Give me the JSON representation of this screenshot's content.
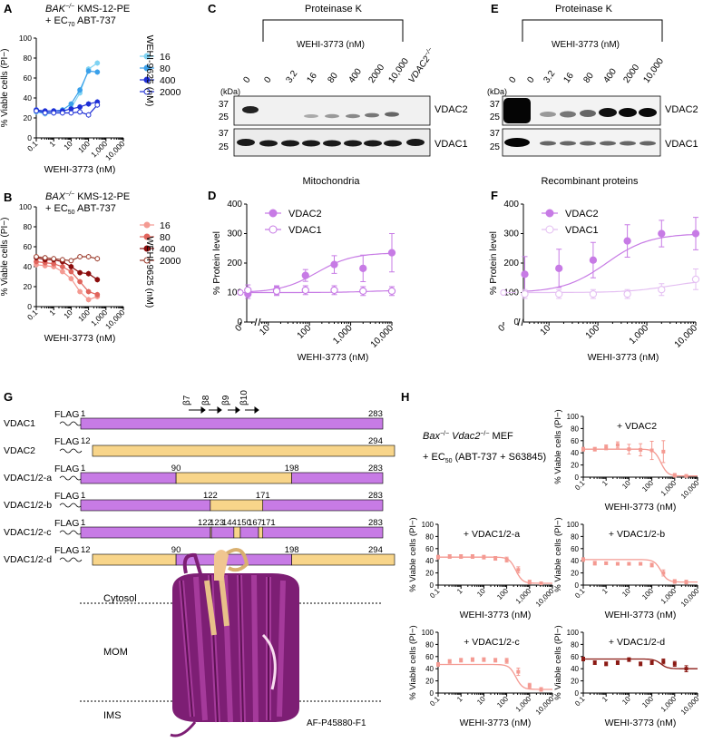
{
  "panels": {
    "A": {
      "letter": "A",
      "title_line1_gene": "BAK",
      "title_line1_sup": "−/−",
      "title_line1_rest": " KMS-12-PE",
      "title_line2": "+ EC",
      "title_line2_sub": "70",
      "title_line2_rest": " ABT-737",
      "ylabel": "% Viable cells (PI",
      "ylabel_sup": "−",
      "ylabel_close": ")",
      "xlabel": "WEHI-3773 (nM)",
      "legend_title": "WEHI-9625 (nM)"
    },
    "B": {
      "letter": "B",
      "title_line1_gene": "BAX",
      "title_line1_sup": "−/−",
      "title_line1_rest": " KMS-12-PE",
      "title_line2": "+ EC",
      "title_line2_sub": "50",
      "title_line2_rest": " ABT-737",
      "ylabel": "% Viable cells (PI",
      "ylabel_sup": "−",
      "ylabel_close": ")",
      "xlabel": "WEHI-3773 (nM)",
      "legend_title": "WEHI-9625 (nM)"
    },
    "C": {
      "letter": "C",
      "header": "Proteinase K",
      "treatment": "WEHI-3773 (nM)",
      "lanes": [
        "0",
        "0",
        "3.2",
        "16",
        "80",
        "400",
        "2000",
        "10,000"
      ],
      "ko_lane_gene": "VDAC2",
      "ko_lane_sup": "−/−",
      "kda": "(kDa)",
      "markers": [
        "37",
        "25",
        "37",
        "25"
      ],
      "bands": [
        "VDAC2",
        "VDAC1"
      ]
    },
    "E": {
      "letter": "E",
      "header": "Proteinase K",
      "treatment": "WEHI-3773 (nM)",
      "lanes": [
        "0",
        "0",
        "3.2",
        "16",
        "80",
        "400",
        "2000",
        "10,000"
      ],
      "kda": "(kDa)",
      "markers": [
        "37",
        "25",
        "37",
        "25"
      ],
      "bands": [
        "VDAC2",
        "VDAC1"
      ]
    },
    "D": {
      "letter": "D",
      "title": "Mitochondria"
    },
    "F": {
      "letter": "F",
      "title": "Recombinant proteins"
    },
    "G": {
      "letter": "G",
      "tag": "FLAG",
      "strands": [
        "β7",
        "β8",
        "β9",
        "β10"
      ],
      "constructs": [
        {
          "name": "VDAC1",
          "start": "1",
          "end": "283"
        },
        {
          "name": "VDAC2",
          "start": "12",
          "end": "294"
        },
        {
          "name": "VDAC1/2-a",
          "start": "1",
          "end": "283",
          "junctions": [
            "90",
            "198"
          ]
        },
        {
          "name": "VDAC1/2-b",
          "start": "1",
          "end": "283",
          "junctions": [
            "122",
            "171"
          ]
        },
        {
          "name": "VDAC1/2-c",
          "start": "1",
          "end": "283",
          "junctions": [
            "122",
            "123",
            "144",
            "150",
            "167",
            "171"
          ]
        },
        {
          "name": "VDAC1/2-d",
          "start": "12",
          "end": "294",
          "junctions": [
            "90",
            "198"
          ]
        }
      ],
      "compartments": [
        "Cytosol",
        "MOM",
        "IMS"
      ],
      "structure_id": "AF-P45880-F1"
    },
    "H": {
      "letter": "H",
      "cells_gene1": "Bax",
      "cells_sup1": "−/−",
      "cells_gene2": " Vdac2",
      "cells_sup2": "−/−",
      "cells_rest": " MEF",
      "treat_pre": "+ EC",
      "treat_sub": "50",
      "treat_rest": " (ABT-737 + S63845)",
      "ylabel": "% Viable cells (PI",
      "ylabel_sup": "−",
      "ylabel_close": ")",
      "xlabel": "WEHI-3773 (nM)"
    }
  },
  "colors": {
    "purple": "#c77be5",
    "purple_light": "#e4bff2",
    "tan": "#f8d58a",
    "blue_light": "#7fd3f3",
    "blue_mid": "#3aa0ea",
    "blue_dark": "#1e2fd6",
    "red_light": "#f49a92",
    "red_mid": "#e0645c",
    "red_dark": "#8b0c0c",
    "red_darker": "#9a3a2a"
  },
  "chart_data": [
    {
      "id": "A",
      "type": "line",
      "xlabel": "WEHI-3773 (nM)",
      "ylabel": "% Viable cells (PI−)",
      "xscale": "log",
      "xlim": [
        0.1,
        10000
      ],
      "ylim": [
        0,
        100
      ],
      "xticks": [
        "0.1",
        "1",
        "10",
        "100",
        "1,000",
        "10,000"
      ],
      "yticks": [
        "0",
        "20",
        "40",
        "60",
        "80",
        "100"
      ],
      "legend_title": "WEHI-9625 (nM)",
      "x": [
        0.1,
        0.32,
        1,
        3.2,
        10,
        32,
        100,
        320
      ],
      "series": [
        {
          "name": "16",
          "color": "#7fd3f3",
          "filled": true,
          "values": [
            26,
            24,
            25,
            26,
            30,
            45,
            69,
            75
          ]
        },
        {
          "name": "80",
          "color": "#3aa0ea",
          "filled": true,
          "values": [
            28,
            26,
            27,
            28,
            34,
            48,
            67,
            66
          ]
        },
        {
          "name": "400",
          "color": "#1e2fd6",
          "filled": true,
          "values": [
            28,
            27,
            27,
            27,
            29,
            31,
            34,
            36
          ]
        },
        {
          "name": "2000",
          "color": "#1e2fd6",
          "filled": false,
          "values": [
            27,
            25,
            25,
            25,
            25,
            26,
            23,
            33
          ]
        }
      ]
    },
    {
      "id": "B",
      "type": "line",
      "xlabel": "WEHI-3773 (nM)",
      "ylabel": "% Viable cells (PI−)",
      "xscale": "log",
      "xlim": [
        0.1,
        10000
      ],
      "ylim": [
        0,
        100
      ],
      "xticks": [
        "0.1",
        "1",
        "10",
        "100",
        "1,000",
        "10,000"
      ],
      "yticks": [
        "0",
        "20",
        "40",
        "60",
        "80",
        "100"
      ],
      "legend_title": "WEHI-9625 (nM)",
      "x": [
        0.1,
        0.32,
        1,
        3.2,
        10,
        32,
        100,
        320
      ],
      "series": [
        {
          "name": "16",
          "color": "#f49a92",
          "filled": true,
          "values": [
            42,
            41,
            40,
            35,
            28,
            15,
            7,
            10
          ]
        },
        {
          "name": "80",
          "color": "#e0645c",
          "filled": true,
          "values": [
            45,
            44,
            43,
            40,
            35,
            25,
            15,
            12
          ]
        },
        {
          "name": "400",
          "color": "#8b0c0c",
          "filled": true,
          "values": [
            49,
            47,
            47,
            45,
            40,
            34,
            33,
            27
          ]
        },
        {
          "name": "2000",
          "color": "#9a3a2a",
          "filled": false,
          "values": [
            50,
            49,
            48,
            47,
            46,
            50,
            50,
            48
          ]
        }
      ]
    },
    {
      "id": "D",
      "type": "scatter",
      "title": "Mitochondria",
      "xlabel": "WEHI-3773 (nM)",
      "ylabel": "% Protein level",
      "xscale": "log",
      "xlim": [
        3,
        10000
      ],
      "ylim": [
        0,
        400
      ],
      "xticks": [
        "10",
        "100",
        "1,000",
        "10,000"
      ],
      "yticks": [
        "0",
        "100",
        "200",
        "300",
        "400"
      ],
      "x_zero_label": "0",
      "x": [
        3.2,
        16,
        80,
        400,
        2000,
        10000
      ],
      "series": [
        {
          "name": "VDAC2",
          "color": "#c77be5",
          "filled": true,
          "zero_value": 100,
          "values": [
            95,
            108,
            158,
            195,
            182,
            235
          ],
          "errors": [
            15,
            15,
            20,
            30,
            45,
            65
          ]
        },
        {
          "name": "VDAC1",
          "color": "#c77be5",
          "filled": false,
          "zero_value": 100,
          "values": [
            108,
            105,
            108,
            108,
            105,
            105
          ],
          "errors": [
            18,
            15,
            15,
            15,
            15,
            15
          ]
        }
      ]
    },
    {
      "id": "F",
      "type": "scatter",
      "title": "Recombinant proteins",
      "xlabel": "WEHI-3773 (nM)",
      "ylabel": "% Protein level",
      "xscale": "log",
      "xlim": [
        3,
        10000
      ],
      "ylim": [
        0,
        400
      ],
      "xticks": [
        "10",
        "100",
        "1,000",
        "10,000"
      ],
      "yticks": [
        "0",
        "100",
        "200",
        "300",
        "400"
      ],
      "x_zero_label": "0",
      "x": [
        3.2,
        16,
        80,
        400,
        2000,
        10000
      ],
      "series": [
        {
          "name": "VDAC2",
          "color": "#c77be5",
          "filled": true,
          "zero_value": 100,
          "values": [
            162,
            182,
            210,
            275,
            300,
            300
          ],
          "errors": [
            60,
            65,
            60,
            55,
            45,
            55
          ]
        },
        {
          "name": "VDAC1",
          "color": "#e4bff2",
          "filled": false,
          "zero_value": 100,
          "values": [
            95,
            95,
            95,
            95,
            110,
            145
          ],
          "errors": [
            15,
            15,
            15,
            15,
            20,
            35
          ]
        }
      ]
    },
    {
      "id": "H1",
      "type": "line",
      "label": "+ VDAC2",
      "xlabel": "WEHI-3773 (nM)",
      "ylabel": "% Viable cells (PI−)",
      "xscale": "log",
      "xlim": [
        0.1,
        10000
      ],
      "ylim": [
        0,
        100
      ],
      "xticks": [
        "0.1",
        "1",
        "10",
        "100",
        "1,000",
        "10,000"
      ],
      "yticks": [
        "0",
        "20",
        "40",
        "60",
        "80",
        "100"
      ],
      "color": "#f49a92",
      "x": [
        0.1,
        0.32,
        1,
        3.2,
        10,
        32,
        100,
        320,
        1000,
        3200
      ],
      "values": [
        46,
        46,
        49,
        53,
        46,
        45,
        44,
        42,
        3,
        2
      ],
      "errors": [
        3,
        3,
        4,
        5,
        8,
        10,
        15,
        18,
        3,
        2
      ]
    },
    {
      "id": "H2",
      "type": "line",
      "label": "+ VDAC1/2-a",
      "xlabel": "WEHI-3773 (nM)",
      "ylabel": "% Viable cells (PI−)",
      "xscale": "log",
      "xlim": [
        0.1,
        10000
      ],
      "ylim": [
        0,
        100
      ],
      "xticks": [
        "0.1",
        "1",
        "10",
        "100",
        "1,000",
        "10,000"
      ],
      "yticks": [
        "0",
        "20",
        "40",
        "60",
        "80",
        "100"
      ],
      "color": "#f49a92",
      "x": [
        0.1,
        0.32,
        1,
        3.2,
        10,
        32,
        100,
        320,
        1000,
        3200
      ],
      "values": [
        46,
        47,
        47,
        47,
        46,
        44,
        42,
        25,
        5,
        3
      ],
      "errors": [
        3,
        3,
        3,
        3,
        3,
        3,
        4,
        5,
        3,
        2
      ]
    },
    {
      "id": "H3",
      "type": "line",
      "label": "+ VDAC1/2-b",
      "xlabel": "WEHI-3773 (nM)",
      "ylabel": "% Viable cells (PI−)",
      "xscale": "log",
      "xlim": [
        0.1,
        10000
      ],
      "ylim": [
        0,
        100
      ],
      "xticks": [
        "0.1",
        "1",
        "10",
        "100",
        "1,000",
        "10,000"
      ],
      "yticks": [
        "0",
        "20",
        "40",
        "60",
        "80",
        "100"
      ],
      "color": "#f49a92",
      "x": [
        0.1,
        0.32,
        1,
        3.2,
        10,
        32,
        100,
        320,
        1000,
        3200
      ],
      "values": [
        42,
        36,
        36,
        35,
        35,
        35,
        33,
        20,
        6,
        5
      ],
      "errors": [
        3,
        3,
        2,
        2,
        2,
        2,
        3,
        5,
        3,
        3
      ]
    },
    {
      "id": "H4",
      "type": "line",
      "label": "+ VDAC1/2-c",
      "xlabel": "WEHI-3773 (nM)",
      "ylabel": "% Viable cells (PI−)",
      "xscale": "log",
      "xlim": [
        0.1,
        10000
      ],
      "ylim": [
        0,
        100
      ],
      "xticks": [
        "0.1",
        "1",
        "10",
        "100",
        "1,000",
        "10,000"
      ],
      "yticks": [
        "0",
        "20",
        "40",
        "60",
        "80",
        "100"
      ],
      "color": "#f49a92",
      "x": [
        0.1,
        0.32,
        1,
        3.2,
        10,
        32,
        100,
        320,
        1000,
        3200
      ],
      "values": [
        47,
        52,
        54,
        55,
        55,
        54,
        53,
        35,
        12,
        6
      ],
      "errors": [
        3,
        3,
        3,
        3,
        3,
        3,
        4,
        6,
        4,
        3
      ]
    },
    {
      "id": "H5",
      "type": "line",
      "label": "+ VDAC1/2-d",
      "xlabel": "WEHI-3773 (nM)",
      "ylabel": "% Viable cells (PI−)",
      "xscale": "log",
      "xlim": [
        0.1,
        10000
      ],
      "ylim": [
        0,
        100
      ],
      "xticks": [
        "0.1",
        "1",
        "10",
        "100",
        "1,000",
        "10,000"
      ],
      "yticks": [
        "0",
        "20",
        "40",
        "60",
        "80",
        "100"
      ],
      "color": "#8b1a14",
      "x": [
        0.1,
        0.32,
        1,
        3.2,
        10,
        32,
        100,
        320,
        1000,
        3200
      ],
      "values": [
        56,
        50,
        48,
        50,
        55,
        48,
        50,
        52,
        48,
        40
      ],
      "errors": [
        3,
        3,
        3,
        3,
        3,
        3,
        3,
        4,
        4,
        5
      ]
    }
  ]
}
